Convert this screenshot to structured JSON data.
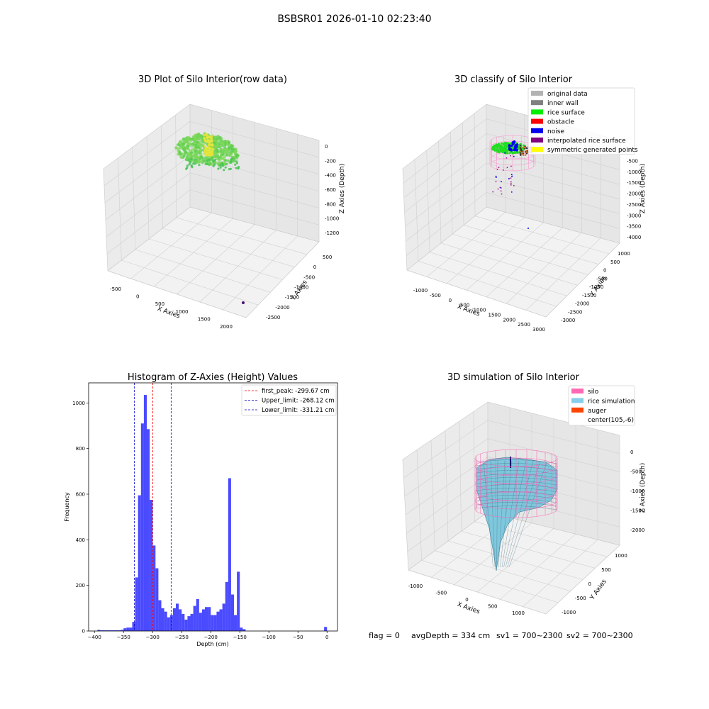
{
  "suptitle": "BSBSR01 2026-01-10 02:23:40",
  "footer": {
    "flag": "flag = 0",
    "avg_depth": "avgDepth = 334 cm",
    "sv1": "sv1 = 700~2300",
    "sv2": "sv2 = 700~2300"
  },
  "panels": {
    "raw": {
      "title": "3D Plot of Silo Interior(row data)",
      "xlabel": "X Axies",
      "ylabel": "Y Axies",
      "zlabel": "Z Axies (Depth)",
      "xticks": [
        "-500",
        "0",
        "500",
        "1000",
        "1500",
        "2000"
      ],
      "yticks": [
        "500",
        "0",
        "-500",
        "-1000",
        "-1500",
        "-2000",
        "-2500"
      ],
      "zticks": [
        "0",
        "-200",
        "-400",
        "-600",
        "-800",
        "-1000",
        "-1200"
      ]
    },
    "classify": {
      "title": "3D classify of Silo Interior",
      "xlabel": "X Axies",
      "ylabel": "Y Axies",
      "zlabel": "Z Axies (Depth)",
      "xticks": [
        "-1000",
        "-500",
        "0",
        "500",
        "1000",
        "1500",
        "2000",
        "2500",
        "3000"
      ],
      "yticks": [
        "1000",
        "500",
        "0",
        "-500",
        "-1000",
        "-1500",
        "-2000",
        "-2500",
        "-3000"
      ],
      "zticks": [
        "0",
        "-500",
        "-1000",
        "-1500",
        "-2000",
        "-2500",
        "-3000",
        "-3500",
        "-4000"
      ],
      "legend": [
        {
          "label": "original data",
          "color": "#b3b3b3"
        },
        {
          "label": "inner wall",
          "color": "#808080"
        },
        {
          "label": "rice surface",
          "color": "#00ee00"
        },
        {
          "label": "obstacle",
          "color": "#ff0000"
        },
        {
          "label": "noise",
          "color": "#0000ee"
        },
        {
          "label": "interpolated rice surface",
          "color": "#800080"
        },
        {
          "label": "symmetric generated points",
          "color": "#ffff00"
        }
      ]
    },
    "simulation": {
      "title": "3D simulation of Silo Interior",
      "xlabel": "X Axies",
      "ylabel": "Y Axies",
      "zlabel": "Z Axies (Depth)",
      "xticks": [
        "-1000",
        "-500",
        "0",
        "500",
        "1000"
      ],
      "yticks": [
        "1000",
        "500",
        "0",
        "-500",
        "-1000"
      ],
      "zticks": [
        "0",
        "-500",
        "-1000",
        "-1500",
        "-2000"
      ],
      "legend": [
        {
          "label": "silo",
          "color": "#ff69b4"
        },
        {
          "label": "rice simulation",
          "color": "#87ceeb"
        },
        {
          "label": "auger",
          "color": "#ff4500"
        },
        {
          "label": "center(105,-6)",
          "color": ""
        }
      ]
    }
  },
  "chart_data": {
    "type": "bar",
    "title": "Histogram of Z-Axies (Height) Values",
    "xlabel": "Depth (cm)",
    "ylabel": "Frequency",
    "xlim": [
      -410,
      18
    ],
    "ylim": [
      0,
      1088
    ],
    "xticks": [
      -400,
      -350,
      -300,
      -250,
      -200,
      -150,
      -100,
      -50,
      0
    ],
    "yticks": [
      0,
      200,
      400,
      600,
      800,
      1000
    ],
    "bar_color": "#4a4aff",
    "bins": [
      {
        "x0": -395,
        "x1": -390,
        "count": 5
      },
      {
        "x0": -390,
        "x1": -385,
        "count": 3
      },
      {
        "x0": -385,
        "x1": -380,
        "count": 3
      },
      {
        "x0": -380,
        "x1": -375,
        "count": 3
      },
      {
        "x0": -375,
        "x1": -370,
        "count": 3
      },
      {
        "x0": -370,
        "x1": -365,
        "count": 3
      },
      {
        "x0": -365,
        "x1": -360,
        "count": 3
      },
      {
        "x0": -360,
        "x1": -355,
        "count": 3
      },
      {
        "x0": -355,
        "x1": -350,
        "count": 5
      },
      {
        "x0": -350,
        "x1": -345,
        "count": 12
      },
      {
        "x0": -345,
        "x1": -340,
        "count": 15
      },
      {
        "x0": -340,
        "x1": -335,
        "count": 15
      },
      {
        "x0": -335,
        "x1": -330,
        "count": 40
      },
      {
        "x0": -330,
        "x1": -325,
        "count": 235
      },
      {
        "x0": -325,
        "x1": -320,
        "count": 595
      },
      {
        "x0": -320,
        "x1": -315,
        "count": 910
      },
      {
        "x0": -315,
        "x1": -310,
        "count": 1035
      },
      {
        "x0": -310,
        "x1": -305,
        "count": 885
      },
      {
        "x0": -305,
        "x1": -300,
        "count": 575
      },
      {
        "x0": -300,
        "x1": -295,
        "count": 375
      },
      {
        "x0": -295,
        "x1": -290,
        "count": 275
      },
      {
        "x0": -290,
        "x1": -285,
        "count": 135
      },
      {
        "x0": -285,
        "x1": -280,
        "count": 100
      },
      {
        "x0": -280,
        "x1": -275,
        "count": 85
      },
      {
        "x0": -275,
        "x1": -270,
        "count": 60
      },
      {
        "x0": -270,
        "x1": -265,
        "count": 70
      },
      {
        "x0": -265,
        "x1": -260,
        "count": 100
      },
      {
        "x0": -260,
        "x1": -255,
        "count": 120
      },
      {
        "x0": -255,
        "x1": -250,
        "count": 95
      },
      {
        "x0": -250,
        "x1": -245,
        "count": 75
      },
      {
        "x0": -245,
        "x1": -240,
        "count": 50
      },
      {
        "x0": -240,
        "x1": -235,
        "count": 65
      },
      {
        "x0": -235,
        "x1": -230,
        "count": 75
      },
      {
        "x0": -230,
        "x1": -225,
        "count": 110
      },
      {
        "x0": -225,
        "x1": -220,
        "count": 140
      },
      {
        "x0": -220,
        "x1": -215,
        "count": 80
      },
      {
        "x0": -215,
        "x1": -210,
        "count": 95
      },
      {
        "x0": -210,
        "x1": -205,
        "count": 105
      },
      {
        "x0": -205,
        "x1": -200,
        "count": 105
      },
      {
        "x0": -200,
        "x1": -195,
        "count": 70
      },
      {
        "x0": -195,
        "x1": -190,
        "count": 70
      },
      {
        "x0": -190,
        "x1": -185,
        "count": 85
      },
      {
        "x0": -185,
        "x1": -180,
        "count": 95
      },
      {
        "x0": -180,
        "x1": -175,
        "count": 120
      },
      {
        "x0": -175,
        "x1": -170,
        "count": 215
      },
      {
        "x0": -170,
        "x1": -165,
        "count": 670
      },
      {
        "x0": -165,
        "x1": -160,
        "count": 160
      },
      {
        "x0": -160,
        "x1": -155,
        "count": 70
      },
      {
        "x0": -155,
        "x1": -150,
        "count": 260
      },
      {
        "x0": -150,
        "x1": -145,
        "count": 15
      },
      {
        "x0": -145,
        "x1": -140,
        "count": 8
      },
      {
        "x0": -5,
        "x1": 0,
        "count": 18
      }
    ],
    "lines": [
      {
        "label": "first_peak: -299.67 cm",
        "value": -299.67,
        "color": "#ff0000"
      },
      {
        "label": "Upper_limit: -268.12 cm",
        "value": -268.12,
        "color": "#0000cc"
      },
      {
        "label": "Lower_limit: -331.21 cm",
        "value": -331.21,
        "color": "#0000cc"
      }
    ]
  }
}
